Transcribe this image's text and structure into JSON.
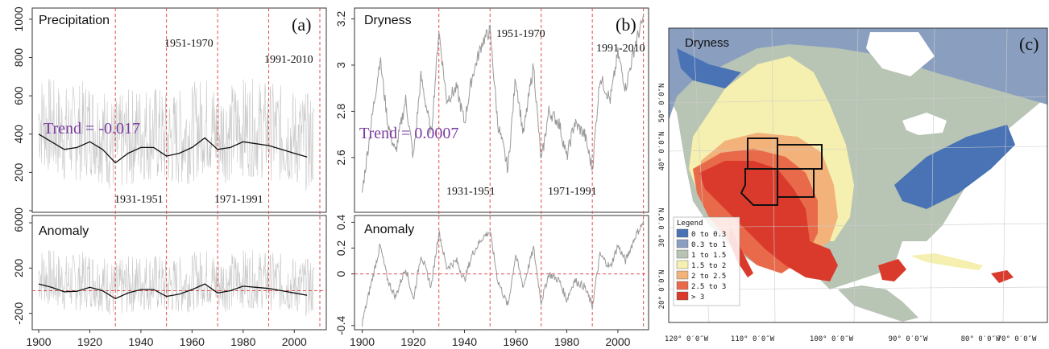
{
  "chart_data": [
    {
      "type": "line",
      "panel": "(a)",
      "title": "Precipitation",
      "subtitle": "Anomaly",
      "trend_label": "Trend = -0.017",
      "x_range": [
        1900,
        2010
      ],
      "x_ticks": [
        1900,
        1920,
        1940,
        1960,
        1980,
        2000
      ],
      "top": {
        "ylim": [
          0,
          1050
        ],
        "y_ticks": [
          0,
          200,
          400,
          600,
          800,
          1000
        ],
        "moving_average": {
          "x": [
            1900,
            1905,
            1910,
            1915,
            1920,
            1925,
            1930,
            1935,
            1940,
            1945,
            1950,
            1955,
            1960,
            1965,
            1970,
            1975,
            1980,
            1985,
            1990,
            1995,
            2000,
            2005
          ],
          "y": [
            400,
            360,
            320,
            330,
            360,
            320,
            250,
            300,
            330,
            330,
            285,
            300,
            330,
            380,
            320,
            330,
            360,
            350,
            340,
            320,
            300,
            280
          ]
        },
        "raw_series_range": [
          60,
          1000
        ]
      },
      "bottom": {
        "ylim": [
          -330,
          650
        ],
        "y_ticks": [
          -200,
          200,
          600
        ],
        "zero_line": 0,
        "moving_average": {
          "x": [
            1900,
            1905,
            1910,
            1915,
            1920,
            1925,
            1930,
            1935,
            1940,
            1945,
            1950,
            1955,
            1960,
            1965,
            1970,
            1975,
            1980,
            1985,
            1990,
            1995,
            2000,
            2005
          ],
          "y": [
            60,
            30,
            -10,
            -5,
            30,
            0,
            -70,
            -20,
            10,
            10,
            -50,
            -30,
            10,
            60,
            -20,
            0,
            40,
            30,
            20,
            0,
            -20,
            -40
          ]
        }
      },
      "period_lines": [
        1930,
        1950,
        1970,
        1990,
        2010
      ],
      "periods": [
        {
          "label": "1951-1970",
          "position": "upper"
        },
        {
          "label": "1991-2010",
          "position": "upper"
        },
        {
          "label": "1931-1951",
          "position": "lower"
        },
        {
          "label": "1971-1991",
          "position": "lower"
        }
      ]
    },
    {
      "type": "line",
      "panel": "(b)",
      "title": "Dryness",
      "subtitle": "Anomaly",
      "trend_label": "Trend = 0.0007",
      "x_range": [
        1897,
        2012
      ],
      "x_ticks": [
        1900,
        1920,
        1940,
        1960,
        1980,
        2000
      ],
      "top": {
        "ylim": [
          2.37,
          3.24
        ],
        "y_ticks": [
          2.6,
          2.8,
          3.0,
          3.2
        ],
        "series": {
          "x": [
            1900,
            1903,
            1907,
            1910,
            1913,
            1917,
            1920,
            1923,
            1927,
            1930,
            1933,
            1937,
            1940,
            1943,
            1947,
            1950,
            1953,
            1957,
            1960,
            1963,
            1967,
            1970,
            1973,
            1977,
            1980,
            1983,
            1987,
            1990,
            1993,
            1997,
            2000,
            2003,
            2007,
            2010
          ],
          "y": [
            2.45,
            2.7,
            3.03,
            2.75,
            2.62,
            2.85,
            2.6,
            2.95,
            2.7,
            3.15,
            2.85,
            2.9,
            2.75,
            2.95,
            3.1,
            3.15,
            2.75,
            2.55,
            2.95,
            2.7,
            3.0,
            2.58,
            2.8,
            2.75,
            2.6,
            2.75,
            2.7,
            2.55,
            2.95,
            2.85,
            3.05,
            2.9,
            3.1,
            3.2
          ]
        }
      },
      "bottom": {
        "ylim": [
          -0.42,
          0.44
        ],
        "y_ticks": [
          -0.4,
          0.0,
          0.2,
          0.4
        ],
        "zero_line": 0,
        "series": {
          "x": [
            1900,
            1903,
            1907,
            1910,
            1913,
            1917,
            1920,
            1923,
            1927,
            1930,
            1933,
            1937,
            1940,
            1943,
            1947,
            1950,
            1953,
            1957,
            1960,
            1963,
            1967,
            1970,
            1973,
            1977,
            1980,
            1983,
            1987,
            1990,
            1993,
            1997,
            2000,
            2003,
            2007,
            2010
          ],
          "y": [
            -0.38,
            -0.12,
            0.22,
            -0.05,
            -0.18,
            0.05,
            -0.2,
            0.15,
            -0.1,
            0.33,
            0.05,
            0.1,
            -0.05,
            0.15,
            0.28,
            0.33,
            -0.05,
            -0.25,
            0.15,
            -0.1,
            0.2,
            -0.22,
            0.0,
            -0.05,
            -0.2,
            -0.05,
            -0.1,
            -0.25,
            0.15,
            0.05,
            0.22,
            0.1,
            0.3,
            0.4
          ]
        }
      },
      "period_lines": [
        1930,
        1950,
        1970,
        1990,
        2010
      ],
      "periods": [
        {
          "label": "1951-1970",
          "position": "upper"
        },
        {
          "label": "1991-2010",
          "position": "upper"
        },
        {
          "label": "1931-1951",
          "position": "lower"
        },
        {
          "label": "1971-1991",
          "position": "lower"
        }
      ]
    },
    {
      "type": "heatmap",
      "panel": "(c)",
      "title": "Dryness",
      "lon_ticks": [
        "120° 0′0″W",
        "110° 0′0″W",
        "100° 0′0″W",
        "90° 0′0″W",
        "80° 0′0″W",
        "70° 0′0″W"
      ],
      "lat_ticks": [
        "50° 0′0″N",
        "40° 0′0″N",
        "30° 0′0″N",
        "20° 0′0″N"
      ],
      "legend": {
        "title": "Legend",
        "placement": "bottom-left",
        "entries": [
          {
            "label": "0 to 0.3",
            "color": "#4a73b5"
          },
          {
            "label": "0.3 to 1",
            "color": "#8a9fc0"
          },
          {
            "label": "1 to 1.5",
            "color": "#b8c4b4"
          },
          {
            "label": "1.5 to 2",
            "color": "#f5f0b0"
          },
          {
            "label": "2 to 2.5",
            "color": "#f2b27a"
          },
          {
            "label": "2.5 to 3",
            "color": "#e86a4a"
          },
          {
            "label": "> 3",
            "color": "#d93a2b"
          }
        ]
      }
    }
  ]
}
